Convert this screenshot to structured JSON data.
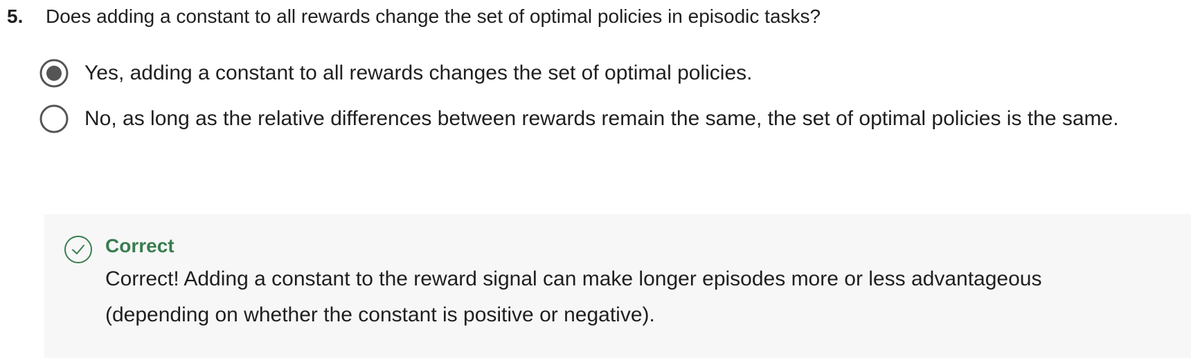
{
  "question": {
    "number": "5.",
    "text": "Does adding a constant to all rewards change the set of optimal policies in episodic tasks?"
  },
  "options": [
    {
      "label": "Yes, adding a constant to all rewards changes the set of optimal policies.",
      "selected": true
    },
    {
      "label": "No, as long as the relative differences between rewards remain the same, the set of optimal policies is the same.",
      "selected": false
    }
  ],
  "feedback": {
    "status": "Correct",
    "icon": "check-circle-icon",
    "text": "Correct! Adding a constant to the reward signal can make longer episodes more or less advantageous (depending on whether the constant is positive or negative).",
    "accent_color": "#3a7d50",
    "background_color": "#f6f7f6"
  }
}
